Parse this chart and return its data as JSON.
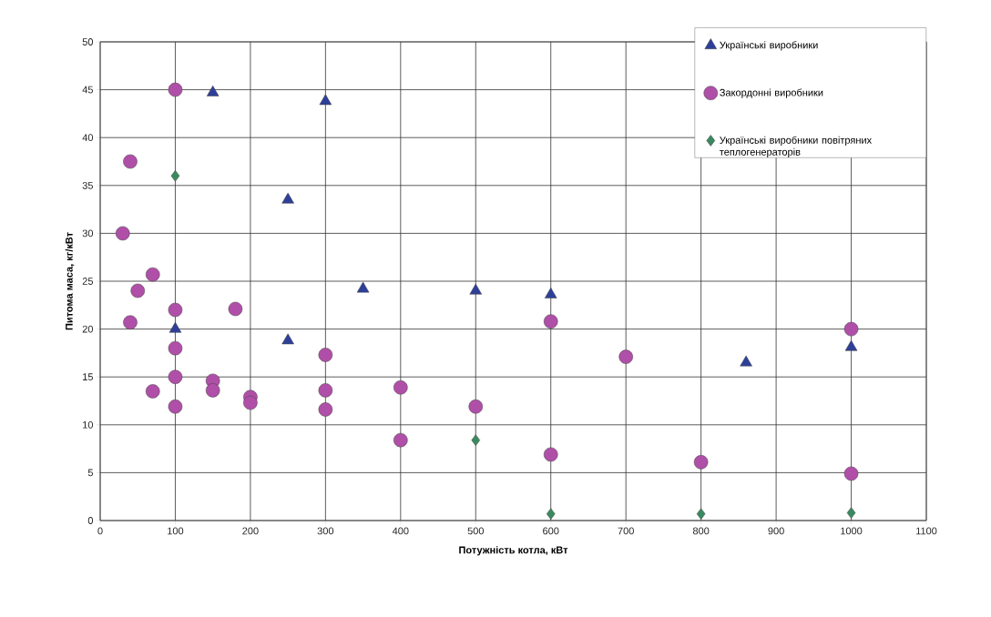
{
  "chart_data": {
    "type": "scatter",
    "xlabel": "Потужність котла, кВт",
    "ylabel": "Питома маса, кг/кВт",
    "xlim": [
      0,
      1100
    ],
    "xticks": [
      0,
      100,
      200,
      300,
      400,
      500,
      600,
      700,
      800,
      900,
      1000,
      1100
    ],
    "ylim": [
      0,
      50
    ],
    "yticks": [
      0,
      5,
      10,
      15,
      20,
      25,
      30,
      35,
      40,
      45,
      50
    ],
    "grid": true,
    "legend": "top right",
    "series": [
      {
        "name": "Українські виробники",
        "color": "#2e3f99",
        "marker": "triangle",
        "x": [
          150,
          300,
          250,
          350,
          500,
          600,
          100,
          250,
          860,
          1000
        ],
        "values": [
          44.7,
          43.8,
          33.5,
          24.2,
          24.0,
          23.6,
          20.0,
          18.8,
          16.5,
          18.1
        ]
      },
      {
        "name": "Закордонні виробники",
        "color": "#b04fa8",
        "marker": "circle",
        "x": [
          100,
          40,
          30,
          70,
          50,
          40,
          100,
          180,
          100,
          100,
          150,
          150,
          70,
          100,
          200,
          200,
          300,
          300,
          300,
          400,
          400,
          500,
          600,
          600,
          700,
          800,
          1000,
          1000
        ],
        "values": [
          45.0,
          37.5,
          30.0,
          25.7,
          24.0,
          20.7,
          22.0,
          22.1,
          18.0,
          15.0,
          14.6,
          13.6,
          13.5,
          11.9,
          12.9,
          12.3,
          17.3,
          13.6,
          11.6,
          13.9,
          8.4,
          11.9,
          20.8,
          6.9,
          17.1,
          6.1,
          20.0,
          4.9
        ]
      },
      {
        "name": "Українські виробники повітряних теплогенераторів",
        "color": "#3a8a60",
        "marker": "diamond",
        "x": [
          100,
          500,
          600,
          800,
          1000
        ],
        "values": [
          36.0,
          8.4,
          0.7,
          0.7,
          0.8
        ]
      }
    ]
  }
}
